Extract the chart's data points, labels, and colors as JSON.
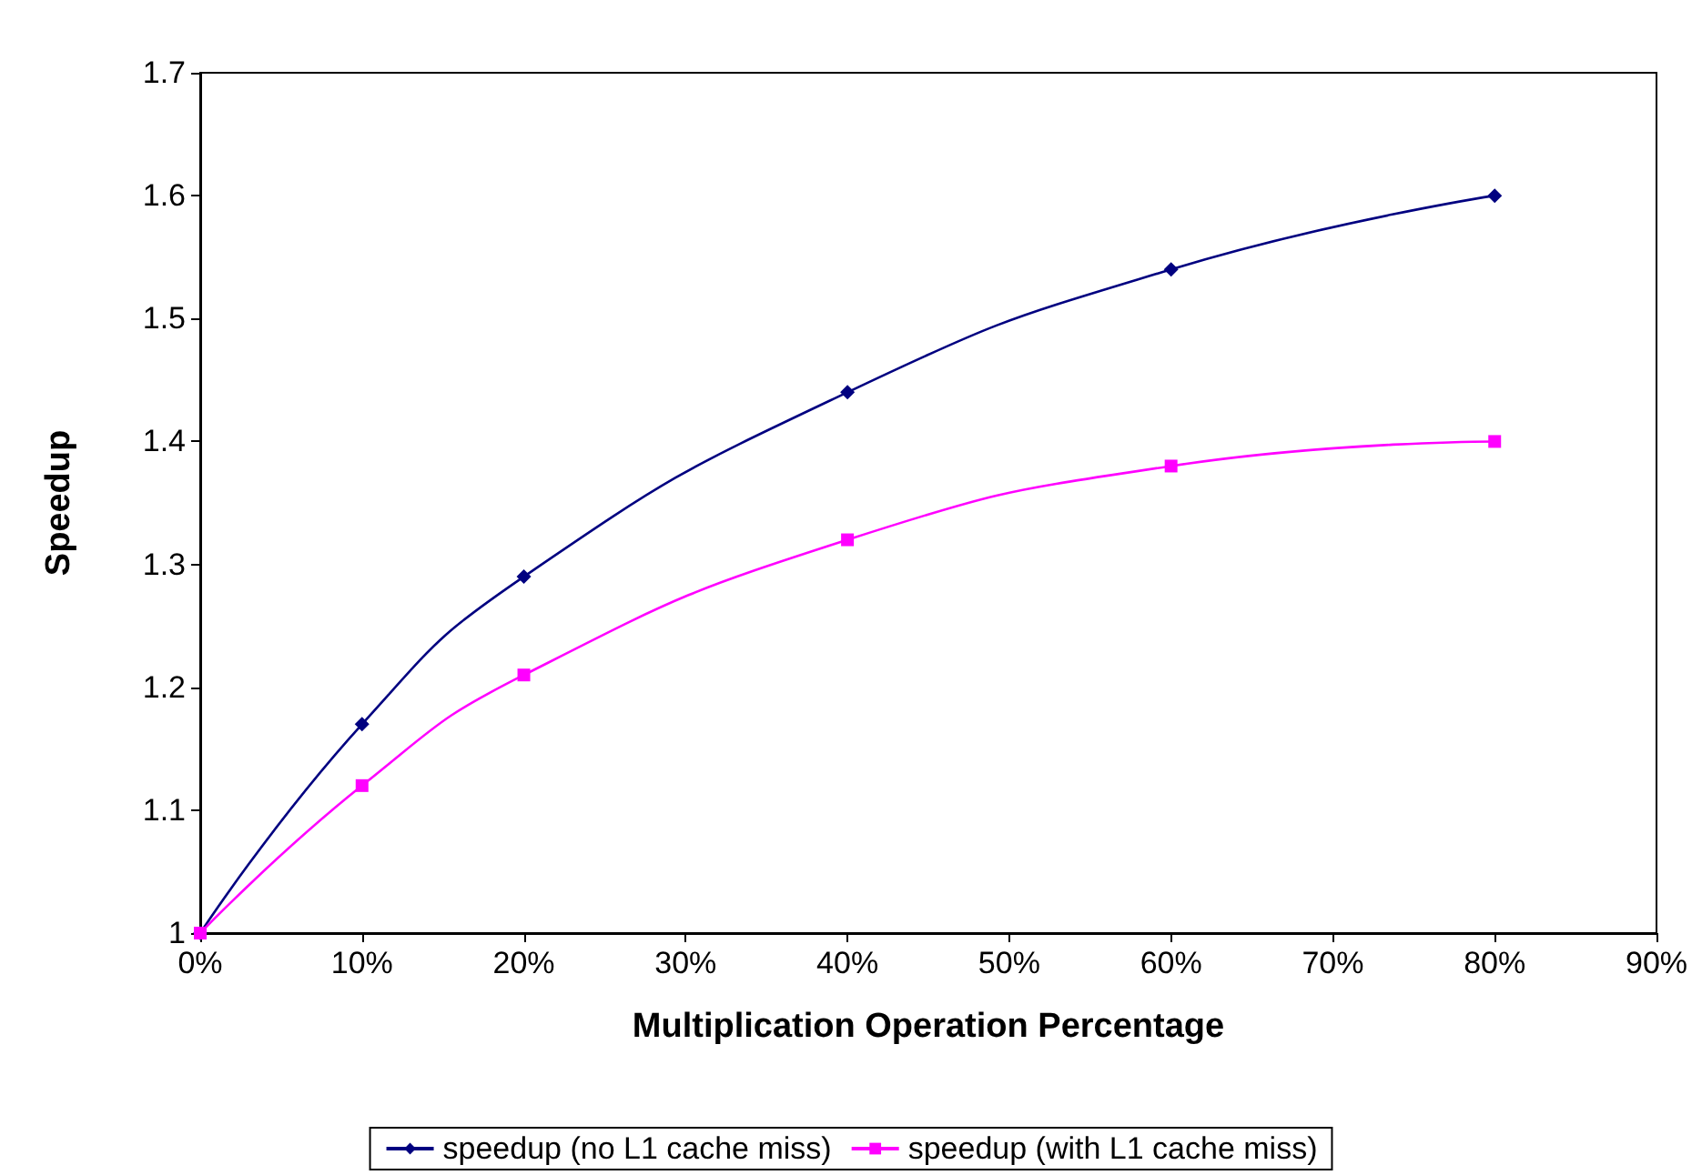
{
  "chart_data": {
    "type": "line",
    "xlabel": "Multiplication Operation Percentage",
    "ylabel": "Speedup",
    "x": [
      0,
      10,
      20,
      40,
      60,
      80
    ],
    "series": [
      {
        "name": "speedup (no L1 cache miss)",
        "color": "#000080",
        "marker": "diamond",
        "values": [
          1,
          1.17,
          1.29,
          1.44,
          1.54,
          1.6
        ]
      },
      {
        "name": "speedup (with L1 cache miss)",
        "color": "#ff00ff",
        "marker": "square",
        "values": [
          1,
          1.12,
          1.21,
          1.32,
          1.38,
          1.4
        ]
      }
    ],
    "xlim": [
      0,
      90
    ],
    "xticks": [
      {
        "value": 0,
        "label": "0%"
      },
      {
        "value": 10,
        "label": "10%"
      },
      {
        "value": 20,
        "label": "20%"
      },
      {
        "value": 30,
        "label": "30%"
      },
      {
        "value": 40,
        "label": "40%"
      },
      {
        "value": 50,
        "label": "50%"
      },
      {
        "value": 60,
        "label": "60%"
      },
      {
        "value": 70,
        "label": "70%"
      },
      {
        "value": 80,
        "label": "80%"
      },
      {
        "value": 90,
        "label": "90%"
      }
    ],
    "ylim": [
      1,
      1.7
    ],
    "yticks": [
      1,
      1.1,
      1.2,
      1.3,
      1.4,
      1.5,
      1.6,
      1.7
    ],
    "grid": false,
    "legend": "bottom",
    "line_style": "solid"
  }
}
